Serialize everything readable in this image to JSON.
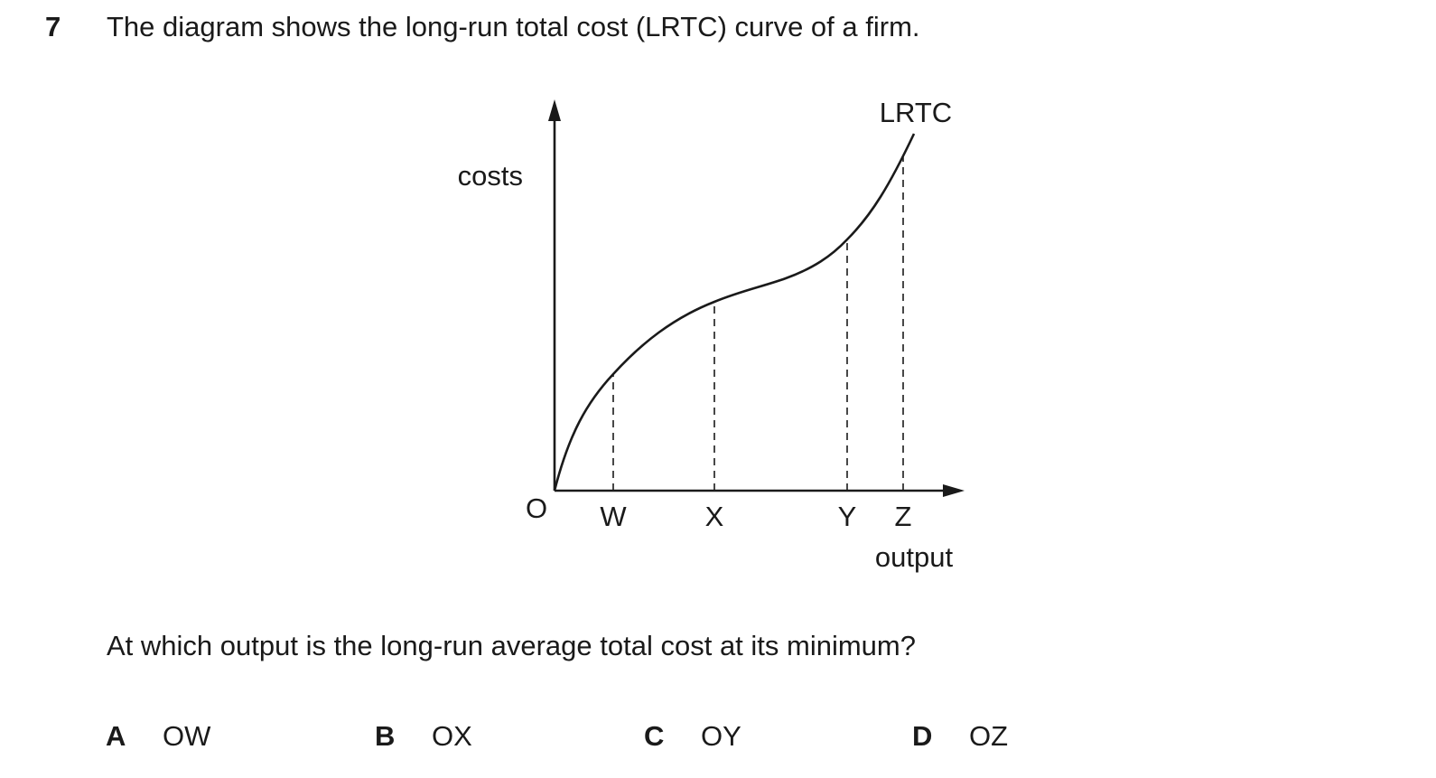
{
  "question": {
    "number": "7",
    "stem": "The diagram shows the long-run total cost (LRTC) curve of a firm.",
    "ask": "At which output is the long-run average total cost at its minimum?"
  },
  "diagram": {
    "y_axis_label": "costs",
    "x_axis_label": "output",
    "origin_label": "O",
    "curve_label": "LRTC",
    "x_markers": [
      "W",
      "X",
      "Y",
      "Z"
    ]
  },
  "options": [
    {
      "letter": "A",
      "text": "OW"
    },
    {
      "letter": "B",
      "text": "OX"
    },
    {
      "letter": "C",
      "text": "OY"
    },
    {
      "letter": "D",
      "text": "OZ"
    }
  ]
}
